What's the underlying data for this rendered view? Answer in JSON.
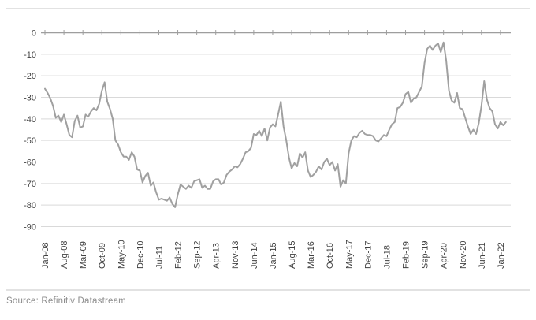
{
  "source_note": "Source: Refinitiv Datastream",
  "colors": {
    "background": "#ffffff",
    "line": "#a0a0a0",
    "grid": "#d9d9d9",
    "axis": "#9e9e9e",
    "tick_label": "#3f3f3f",
    "source_text": "#8c8c8c",
    "divider": "#e2e2e2"
  },
  "chart_data": {
    "type": "line",
    "title": "",
    "xlabel": "",
    "ylabel": "",
    "ylim": [
      -90,
      0
    ],
    "grid": "horizontal",
    "legend": "none",
    "y_ticks": [
      0,
      -10,
      -20,
      -30,
      -40,
      -50,
      -60,
      -70,
      -80,
      -90
    ],
    "x_tick_labels": [
      "Jan-08",
      "Aug-08",
      "Mar-09",
      "Oct-09",
      "May-10",
      "Dec-10",
      "Jul-11",
      "Feb-12",
      "Sep-12",
      "Apr-13",
      "Nov-13",
      "Jun-14",
      "Jan-15",
      "Aug-15",
      "Mar-16",
      "Oct-16",
      "May-17",
      "Dec-17",
      "Jul-18",
      "Feb-19",
      "Sep-19",
      "Apr-20",
      "Nov-20",
      "Jun-21",
      "Jan-22"
    ],
    "x_tick_interval_months": 7,
    "x_start": "Jan-08",
    "x_end": "Mar-22",
    "frequency": "monthly",
    "values": [
      -26,
      -28,
      -30.5,
      -34,
      -39.5,
      -38.5,
      -41.5,
      -38,
      -42.5,
      -47.5,
      -48.5,
      -41,
      -38.5,
      -44,
      -43.5,
      -38,
      -39,
      -36.5,
      -35,
      -36,
      -33,
      -27,
      -23,
      -32,
      -35.5,
      -40,
      -50,
      -52,
      -55.5,
      -57.5,
      -57.5,
      -59,
      -55.5,
      -57.5,
      -63.5,
      -64,
      -69.5,
      -66.5,
      -65,
      -71,
      -69.5,
      -74,
      -77.5,
      -77,
      -77.5,
      -78,
      -76.5,
      -79.5,
      -81,
      -75,
      -70.5,
      -71.5,
      -72.5,
      -71,
      -72,
      -69,
      -68.5,
      -68,
      -72,
      -71,
      -72.5,
      -72.5,
      -69,
      -68,
      -68,
      -70.5,
      -69.5,
      -66,
      -64.5,
      -63.5,
      -62,
      -62.5,
      -61,
      -58.5,
      -55.5,
      -55,
      -53.5,
      -47,
      -47.5,
      -45.5,
      -48,
      -44.5,
      -50,
      -44,
      -42.5,
      -43.5,
      -38,
      -32,
      -43.5,
      -50,
      -58,
      -63,
      -60.5,
      -62,
      -56,
      -58,
      -55.5,
      -64,
      -67,
      -66,
      -64.5,
      -62,
      -63.5,
      -60,
      -58.5,
      -61.5,
      -60,
      -64,
      -61,
      -71.5,
      -68.5,
      -70,
      -56,
      -50,
      -48,
      -48.5,
      -46.5,
      -45.5,
      -47,
      -47.5,
      -47.5,
      -48,
      -50,
      -50.5,
      -49,
      -47.5,
      -48,
      -45,
      -42.5,
      -41.5,
      -35,
      -34.5,
      -32.5,
      -28.5,
      -27.5,
      -32.5,
      -30.5,
      -30,
      -27.5,
      -25,
      -14,
      -7.5,
      -6,
      -8,
      -6,
      -5,
      -9,
      -4.5,
      -13,
      -27,
      -31.5,
      -32.5,
      -28,
      -35,
      -35.5,
      -39.5,
      -43.5,
      -47,
      -45,
      -47,
      -42,
      -34,
      -22.5,
      -31,
      -35,
      -36.5,
      -42.5,
      -44.5,
      -41.5,
      -43,
      -41.5
    ]
  }
}
